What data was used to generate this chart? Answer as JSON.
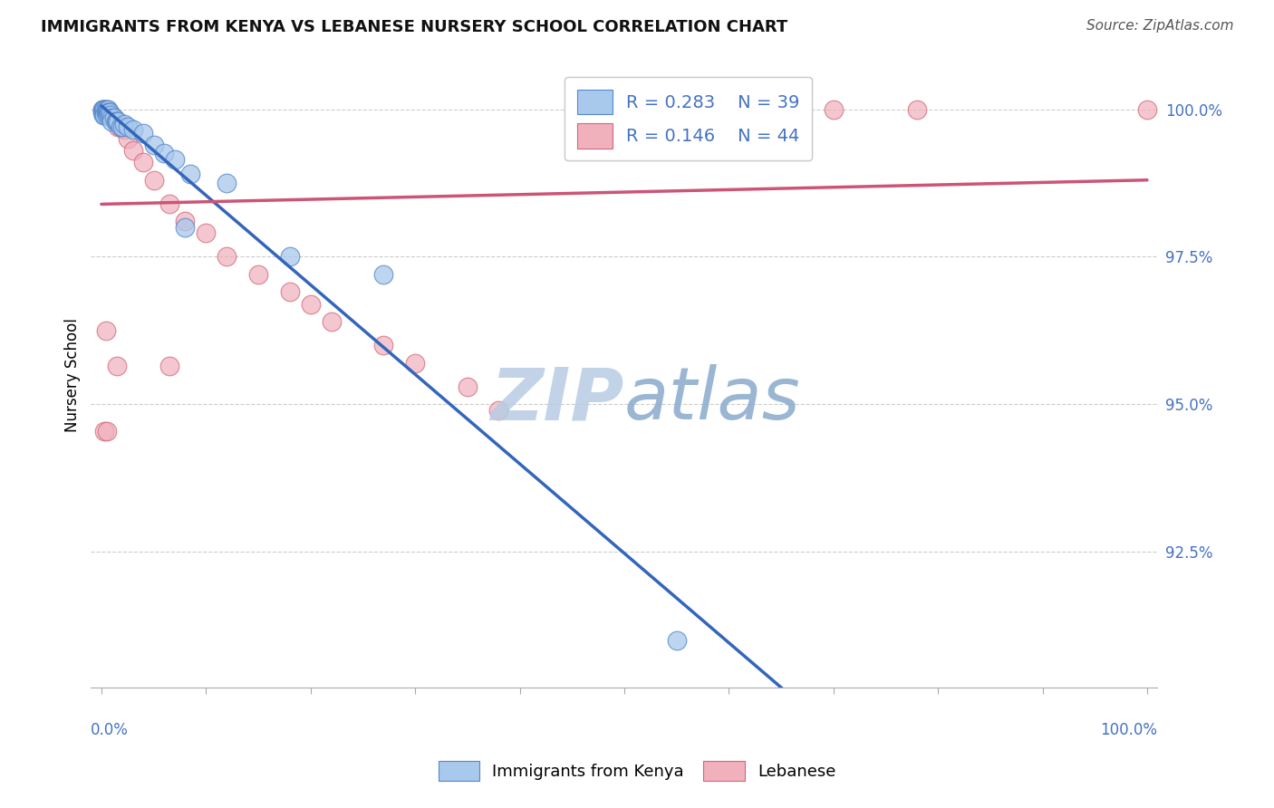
{
  "title": "IMMIGRANTS FROM KENYA VS LEBANESE NURSERY SCHOOL CORRELATION CHART",
  "source": "Source: ZipAtlas.com",
  "ylabel": "Nursery School",
  "watermark_zip": "ZIP",
  "watermark_atlas": "atlas",
  "legend_blue_r": "R = 0.283",
  "legend_blue_n": "N = 39",
  "legend_pink_r": "R = 0.146",
  "legend_pink_n": "N = 44",
  "ytick_values": [
    1.0,
    0.975,
    0.95,
    0.925
  ],
  "ylim": [
    0.902,
    1.008
  ],
  "xlim": [
    -0.01,
    1.01
  ],
  "blue_color": "#a8c8ec",
  "blue_edge_color": "#5588cc",
  "pink_color": "#f0b0bc",
  "pink_edge_color": "#d06878",
  "blue_line_color": "#3366bb",
  "pink_line_color": "#cc5577",
  "grid_color": "#cccccc",
  "axis_label_color": "#4472c4",
  "watermark_color_zip": "#b0c8e8",
  "watermark_color_atlas": "#88aacc",
  "title_fontsize": 13,
  "source_fontsize": 11,
  "tick_fontsize": 12,
  "legend_fontsize": 14,
  "blue_x": [
    0.001,
    0.001,
    0.002,
    0.002,
    0.002,
    0.003,
    0.003,
    0.004,
    0.004,
    0.005,
    0.005,
    0.005,
    0.006,
    0.006,
    0.007,
    0.007,
    0.008,
    0.009,
    0.01,
    0.01,
    0.012,
    0.014,
    0.015,
    0.016,
    0.018,
    0.02,
    0.022,
    0.025,
    0.03,
    0.04,
    0.05,
    0.06,
    0.07,
    0.085,
    0.12,
    0.18,
    0.27,
    0.55,
    0.08
  ],
  "blue_y": [
    1.0,
    0.9995,
    1.0,
    0.9995,
    0.999,
    1.0,
    0.999,
    1.0,
    0.9995,
    1.0,
    0.9995,
    0.999,
    1.0,
    0.9995,
    0.9995,
    0.999,
    0.9995,
    0.999,
    0.9985,
    0.998,
    0.9985,
    0.998,
    0.998,
    0.998,
    0.997,
    0.997,
    0.9975,
    0.997,
    0.9965,
    0.996,
    0.994,
    0.9925,
    0.9915,
    0.989,
    0.9875,
    0.975,
    0.972,
    0.91,
    0.98
  ],
  "pink_x": [
    0.001,
    0.002,
    0.003,
    0.004,
    0.005,
    0.006,
    0.006,
    0.007,
    0.008,
    0.01,
    0.012,
    0.014,
    0.015,
    0.016,
    0.018,
    0.02,
    0.022,
    0.025,
    0.03,
    0.04,
    0.05,
    0.065,
    0.08,
    0.1,
    0.12,
    0.15,
    0.18,
    0.2,
    0.22,
    0.27,
    0.3,
    0.35,
    0.38,
    0.5,
    0.55,
    0.62,
    0.7,
    0.78,
    1.0,
    0.003,
    0.004,
    0.065,
    0.005,
    0.015
  ],
  "pink_y": [
    1.0,
    1.0,
    1.0,
    0.9995,
    0.999,
    1.0,
    0.999,
    0.9995,
    0.999,
    0.999,
    0.9985,
    0.998,
    0.998,
    0.997,
    0.997,
    0.997,
    0.9965,
    0.995,
    0.993,
    0.991,
    0.988,
    0.984,
    0.981,
    0.979,
    0.975,
    0.972,
    0.969,
    0.967,
    0.964,
    0.96,
    0.957,
    0.953,
    0.949,
    1.0,
    1.0,
    1.0,
    1.0,
    1.0,
    1.0,
    0.9455,
    0.9625,
    0.9565,
    0.9455,
    0.9565
  ]
}
